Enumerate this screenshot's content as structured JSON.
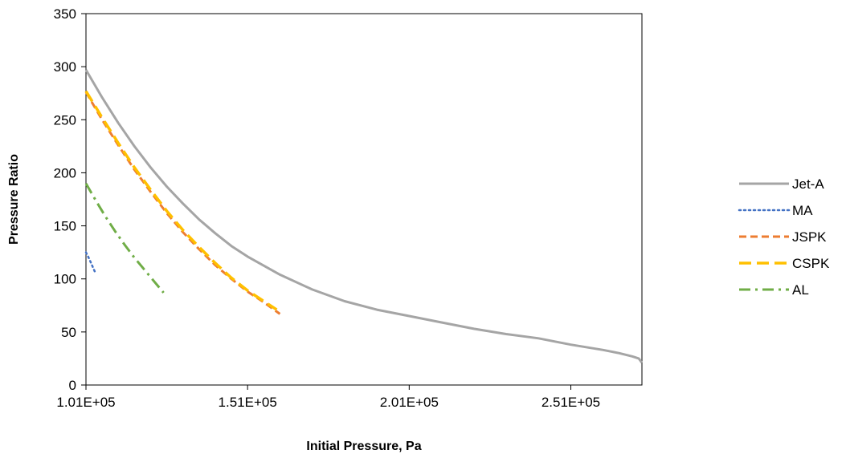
{
  "chart_data": {
    "type": "line",
    "title": "",
    "xlabel": "Initial Pressure, Pa",
    "ylabel": "Pressure Ratio",
    "xlim": [
      101000,
      273000
    ],
    "ylim": [
      0,
      350
    ],
    "xticks": [
      101000,
      151000,
      201000,
      251000
    ],
    "xtick_labels": [
      "1.01E+05",
      "1.51E+05",
      "2.01E+05",
      "2.51E+05"
    ],
    "yticks": [
      0,
      50,
      100,
      150,
      200,
      250,
      300,
      350
    ],
    "ytick_labels": [
      "0",
      "50",
      "100",
      "150",
      "200",
      "250",
      "300",
      "350"
    ],
    "grid": false,
    "legend_position": "right",
    "series": [
      {
        "name": "Jet-A",
        "color": "#a5a5a5",
        "dash": "solid",
        "x": [
          101000,
          106000,
          111000,
          116000,
          121000,
          126000,
          131000,
          136000,
          141000,
          146000,
          151000,
          161000,
          171000,
          181000,
          191000,
          201000,
          211000,
          221000,
          231000,
          241000,
          251000,
          261000,
          266000,
          270000,
          272000,
          273000
        ],
        "y": [
          297,
          271,
          247,
          225,
          205,
          187,
          171,
          156,
          143,
          131,
          121,
          104,
          90,
          79,
          71,
          65,
          59,
          53,
          48,
          44,
          38,
          33,
          30,
          27,
          25,
          21
        ]
      },
      {
        "name": "MA",
        "color": "#4472c4",
        "dash": "dotted",
        "x": [
          101000,
          102000,
          103000,
          104000
        ],
        "y": [
          125,
          119,
          112,
          105
        ]
      },
      {
        "name": "JSPK",
        "color": "#ed7d31",
        "dash": "dashed",
        "x": [
          101000,
          106000,
          111000,
          116000,
          121000,
          126000,
          131000,
          136000,
          141000,
          146000,
          151000,
          156000,
          161000
        ],
        "y": [
          276,
          250,
          226,
          203,
          182,
          162,
          144,
          128,
          113,
          100,
          88,
          78,
          67
        ]
      },
      {
        "name": "CSPK",
        "color": "#ffc000",
        "dash": "longdash",
        "x": [
          101000,
          106000,
          111000,
          116000,
          121000,
          126000,
          131000,
          136000,
          141000,
          146000,
          151000,
          156000,
          160000
        ],
        "y": [
          277,
          252,
          228,
          205,
          184,
          164,
          146,
          130,
          115,
          101,
          89,
          79,
          71
        ]
      },
      {
        "name": "AL",
        "color": "#70ad47",
        "dash": "dashdot",
        "x": [
          101000,
          104000,
          107000,
          110000,
          113000,
          116000,
          119000,
          122000,
          125000
        ],
        "y": [
          190,
          174,
          159,
          145,
          132,
          120,
          109,
          98,
          87
        ]
      }
    ]
  }
}
